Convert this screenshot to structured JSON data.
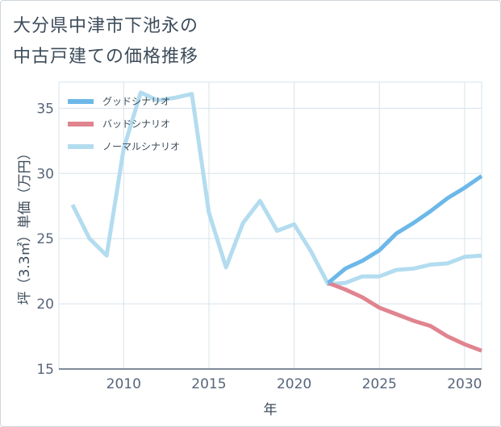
{
  "title_lines": [
    "大分県中津市下池永の",
    "中古戸建ての価格推移"
  ],
  "chart_data": {
    "type": "line",
    "title": "大分県中津市下池永の中古戸建ての価格推移",
    "xlabel": "年",
    "ylabel": "坪（3.3㎡）単価（万円）",
    "xlim": [
      2006.2,
      2031
    ],
    "ylim": [
      15,
      37
    ],
    "xticks": [
      2010,
      2015,
      2020,
      2025,
      2030
    ],
    "yticks": [
      15,
      20,
      25,
      30,
      35
    ],
    "grid": true,
    "legend_position": "top-left",
    "series": [
      {
        "name": "グッドシナリオ",
        "color": "#6cb8e8",
        "x": [
          2022,
          2023,
          2024,
          2025,
          2026,
          2027,
          2028,
          2029,
          2030,
          2031
        ],
        "y": [
          21.6,
          22.7,
          23.3,
          24.1,
          25.4,
          26.2,
          27.1,
          28.1,
          28.9,
          29.8
        ]
      },
      {
        "name": "バッドシナリオ",
        "color": "#e0848f",
        "x": [
          2022,
          2023,
          2024,
          2025,
          2026,
          2027,
          2028,
          2029,
          2030,
          2031
        ],
        "y": [
          21.6,
          21.1,
          20.5,
          19.7,
          19.2,
          18.7,
          18.3,
          17.5,
          16.9,
          16.4
        ]
      },
      {
        "name": "ノーマルシナリオ",
        "color": "#b3dcef",
        "x": [
          2007,
          2008,
          2009,
          2010,
          2011,
          2012,
          2013,
          2014,
          2015,
          2016,
          2017,
          2018,
          2019,
          2020,
          2021,
          2022,
          2023,
          2024,
          2025,
          2026,
          2027,
          2028,
          2029,
          2030,
          2031
        ],
        "y": [
          27.6,
          25.0,
          23.7,
          31.9,
          36.2,
          35.6,
          35.8,
          36.1,
          27.0,
          22.8,
          26.2,
          27.9,
          25.6,
          26.1,
          24.0,
          21.5,
          21.6,
          22.1,
          22.1,
          22.6,
          22.7,
          23.0,
          23.1,
          23.6,
          23.7
        ]
      }
    ]
  }
}
